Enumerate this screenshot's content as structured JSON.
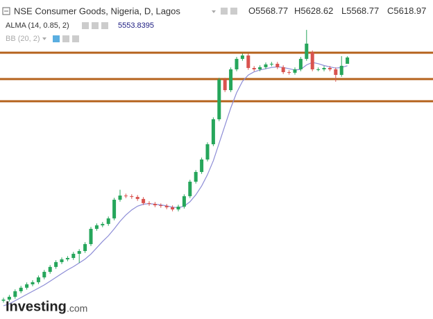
{
  "chart_data": {
    "type": "candlestick",
    "title": "NSE Consumer Goods, Nigeria, D, Lagos",
    "ohlc_labels": [
      "O",
      "H",
      "L",
      "C"
    ],
    "up_color": "#26a65b",
    "down_color": "#d9534f",
    "ylim": [
      3545,
      5998
    ],
    "open": [
      3690,
      3699,
      3721,
      3765,
      3793,
      3820,
      3837,
      3875,
      3919,
      3958,
      3996,
      4018,
      4029,
      4062,
      4084,
      4139,
      4260,
      4288,
      4299,
      4343,
      4491,
      4524,
      4519,
      4513,
      4497,
      4464,
      4458,
      4447,
      4442,
      4431,
      4414,
      4436,
      4519,
      4634,
      4711,
      4810,
      4931,
      5129,
      5443,
      5360,
      5525,
      5608,
      5635,
      5536,
      5525,
      5542,
      5564,
      5569,
      5542,
      5503,
      5498,
      5525,
      5608,
      5660,
      5525,
      5525,
      5536,
      5525,
      5481,
      5568.77
    ],
    "high": [
      3714,
      3736,
      3780,
      3808,
      3835,
      3852,
      3890,
      3934,
      3973,
      4011,
      4033,
      4044,
      4077,
      4099,
      4154,
      4275,
      4303,
      4314,
      4358,
      4506,
      4570,
      4539,
      4534,
      4528,
      4512,
      4479,
      4473,
      4462,
      4457,
      4446,
      4451,
      4534,
      4649,
      4726,
      4825,
      4946,
      5144,
      5458,
      5458,
      5540,
      5623,
      5650,
      5650,
      5551,
      5557,
      5579,
      5584,
      5584,
      5557,
      5518,
      5540,
      5623,
      5838,
      5675,
      5540,
      5551,
      5551,
      5540,
      5630,
      5628.62
    ],
    "low": [
      3675,
      3684,
      3706,
      3750,
      3778,
      3805,
      3822,
      3860,
      3904,
      3943,
      3981,
      4003,
      4014,
      3990,
      4069,
      4124,
      4245,
      4273,
      4284,
      4328,
      4476,
      4504,
      4498,
      4482,
      4449,
      4443,
      4432,
      4427,
      4416,
      4399,
      4399,
      4421,
      4504,
      4619,
      4696,
      4795,
      4916,
      5114,
      5345,
      5345,
      5510,
      5593,
      5521,
      5510,
      5510,
      5527,
      5549,
      5527,
      5488,
      5483,
      5483,
      5510,
      5593,
      5510,
      5510,
      5510,
      5510,
      5427,
      5466,
      5568.77
    ],
    "close": [
      3699,
      3721,
      3765,
      3793,
      3820,
      3837,
      3875,
      3919,
      3958,
      3996,
      4018,
      4029,
      4062,
      4084,
      4139,
      4260,
      4288,
      4299,
      4343,
      4491,
      4524,
      4519,
      4513,
      4497,
      4464,
      4458,
      4447,
      4442,
      4431,
      4414,
      4436,
      4519,
      4634,
      4711,
      4810,
      4931,
      5129,
      5443,
      5360,
      5525,
      5608,
      5635,
      5536,
      5525,
      5542,
      5564,
      5569,
      5542,
      5503,
      5498,
      5525,
      5608,
      5729,
      5525,
      5525,
      5536,
      5525,
      5481,
      5553,
      5618.97
    ],
    "indicators": [
      {
        "name": "ALMA (14, 0.85, 2)",
        "color": "#8c8cd6",
        "values": [
          3650,
          3665,
          3690,
          3715,
          3740,
          3765,
          3790,
          3815,
          3845,
          3875,
          3905,
          3935,
          3960,
          3990,
          4020,
          4060,
          4110,
          4160,
          4205,
          4260,
          4320,
          4370,
          4410,
          4440,
          4455,
          4460,
          4455,
          4450,
          4442,
          4432,
          4428,
          4440,
          4475,
          4530,
          4600,
          4690,
          4800,
          4940,
          5080,
          5220,
          5340,
          5430,
          5480,
          5505,
          5520,
          5530,
          5540,
          5545,
          5540,
          5530,
          5520,
          5525,
          5560,
          5580,
          5570,
          5555,
          5545,
          5535,
          5540,
          5553.8395
        ]
      },
      {
        "name": "BB (20, 2)"
      }
    ],
    "levels": [
      5657,
      5448,
      5272
    ],
    "level_color": "#b5621c",
    "brand": "Investing",
    "brand_suffix": ".com"
  }
}
